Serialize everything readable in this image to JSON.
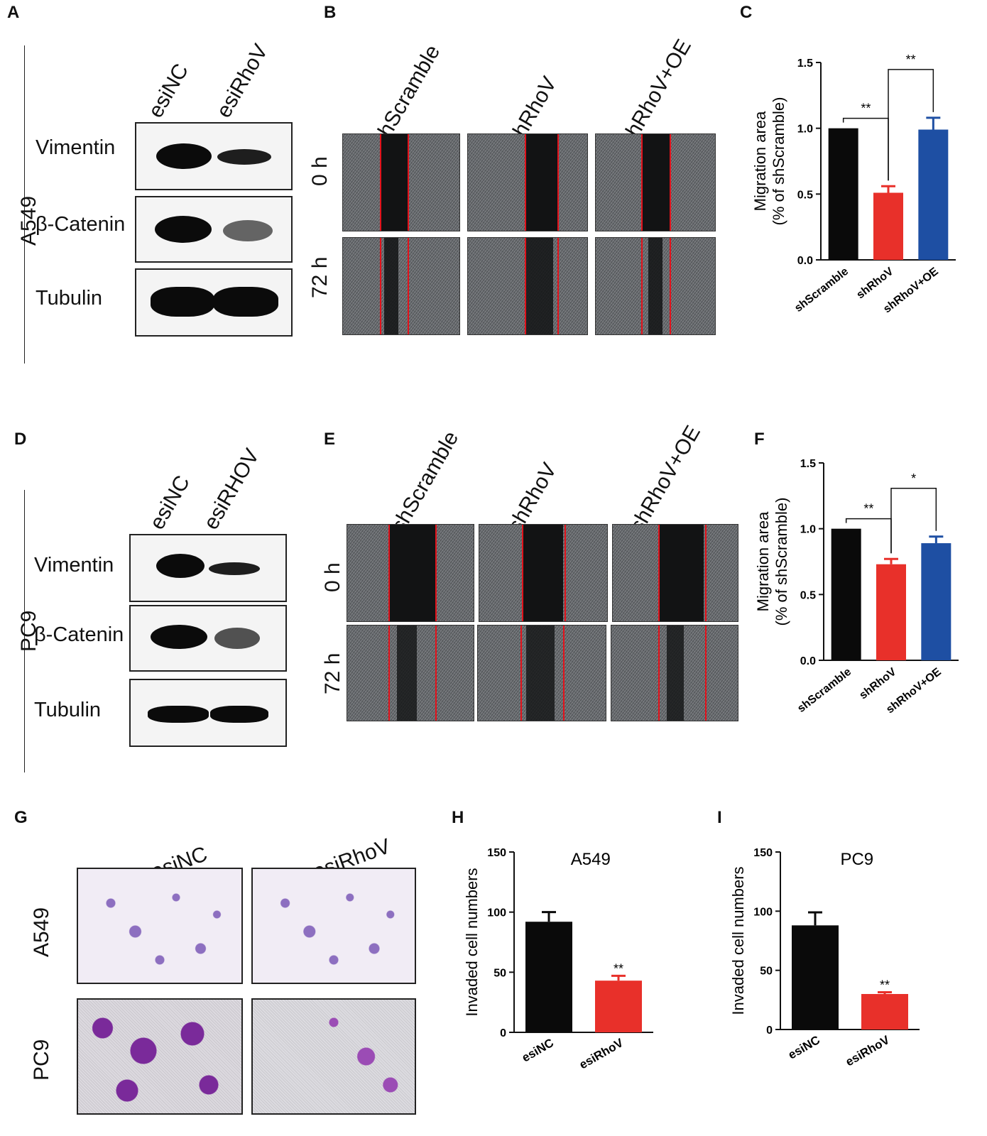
{
  "panels": {
    "a": "A",
    "b": "B",
    "c": "C",
    "d": "D",
    "e": "E",
    "f": "F",
    "g": "G",
    "h": "H",
    "i": "I"
  },
  "panel_a": {
    "cell_line": "A549",
    "lanes": [
      "esiNC",
      "esiRhoV"
    ],
    "proteins": [
      "Vimentin",
      "β-Catenin",
      "Tubulin"
    ]
  },
  "panel_b": {
    "conditions": [
      "shScramble",
      "shRhoV",
      "shRhoV+OE"
    ],
    "times": [
      "0 h",
      "72 h"
    ]
  },
  "panel_d": {
    "cell_line": "PC9",
    "lanes": [
      "esiNC",
      "esiRHOV"
    ],
    "proteins": [
      "Vimentin",
      "β-Catenin",
      "Tubulin"
    ]
  },
  "panel_e": {
    "conditions": [
      "shScramble",
      "shRhoV",
      "shRhoV+OE"
    ],
    "times": [
      "0 h",
      "72 h"
    ]
  },
  "panel_g": {
    "lanes": [
      "esiNC",
      "esiRhoV"
    ],
    "rows": [
      "A549",
      "PC9"
    ]
  },
  "chart_data": [
    {
      "panel": "C",
      "type": "bar",
      "title": "",
      "categories": [
        "shScramble",
        "shRhoV",
        "shRhoV+OE"
      ],
      "values": [
        1.0,
        0.51,
        0.99
      ],
      "errors": [
        0.0,
        0.05,
        0.09
      ],
      "colors": [
        "#0a0a0a",
        "#e8302a",
        "#1e4fa3"
      ],
      "ylabel": [
        "Migration area",
        "(% of shScramble)"
      ],
      "ylim": [
        0,
        1.5
      ],
      "yticks": [
        "0.0",
        "0.5",
        "1.0",
        "1.5"
      ],
      "significance": [
        {
          "between": [
            0,
            1
          ],
          "label": "**"
        },
        {
          "between": [
            1,
            2
          ],
          "label": "**"
        }
      ]
    },
    {
      "panel": "F",
      "type": "bar",
      "title": "",
      "categories": [
        "shScramble",
        "shRhoV",
        "shRhoV+OE"
      ],
      "values": [
        1.0,
        0.73,
        0.89
      ],
      "errors": [
        0.0,
        0.04,
        0.05
      ],
      "colors": [
        "#0a0a0a",
        "#e8302a",
        "#1e4fa3"
      ],
      "ylabel": [
        "Migration area",
        "(% of shScramble)"
      ],
      "ylim": [
        0,
        1.5
      ],
      "yticks": [
        "0.0",
        "0.5",
        "1.0",
        "1.5"
      ],
      "significance": [
        {
          "between": [
            0,
            1
          ],
          "label": "**"
        },
        {
          "between": [
            1,
            2
          ],
          "label": "*"
        }
      ]
    },
    {
      "panel": "H",
      "type": "bar",
      "title": "A549",
      "categories": [
        "esiNC",
        "esiRhoV"
      ],
      "values": [
        92,
        43
      ],
      "errors": [
        8,
        4
      ],
      "colors": [
        "#0a0a0a",
        "#e8302a"
      ],
      "ylabel": [
        "Invaded cell numbers"
      ],
      "ylim": [
        0,
        150
      ],
      "yticks": [
        "0",
        "50",
        "100",
        "150"
      ],
      "bar_marks": [
        "",
        "**"
      ]
    },
    {
      "panel": "I",
      "type": "bar",
      "title": "PC9",
      "categories": [
        "esiNC",
        "esiRhoV"
      ],
      "values": [
        88,
        30
      ],
      "errors": [
        11,
        1.5
      ],
      "colors": [
        "#0a0a0a",
        "#e8302a"
      ],
      "ylabel": [
        "Invaded cell numbers"
      ],
      "ylim": [
        0,
        150
      ],
      "yticks": [
        "0",
        "50",
        "100",
        "150"
      ],
      "bar_marks": [
        "",
        "**"
      ]
    }
  ]
}
